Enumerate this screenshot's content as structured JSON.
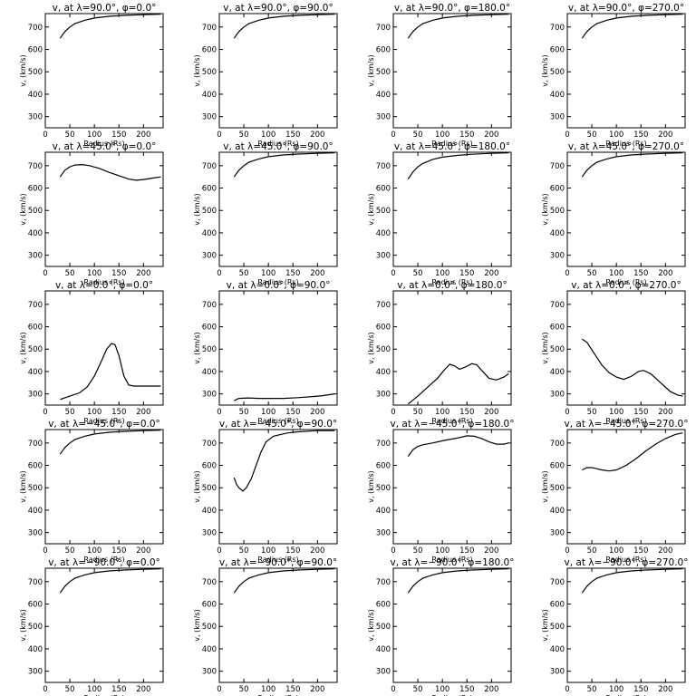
{
  "chart_data": [
    {
      "type": "line",
      "title": "v, at λ=90.0°, φ=0.0°",
      "xlabel": "Radius (Rs)",
      "ylabel": "v, (km/s)",
      "xlim": [
        0,
        240
      ],
      "ylim": [
        250,
        760
      ],
      "xticks": [
        0,
        50,
        100,
        150,
        200
      ],
      "yticks": [
        300,
        400,
        500,
        600,
        700
      ],
      "x": [
        30,
        40,
        50,
        60,
        80,
        100,
        130,
        160,
        200,
        235
      ],
      "y": [
        650,
        680,
        700,
        715,
        730,
        740,
        748,
        752,
        755,
        757
      ]
    },
    {
      "type": "line",
      "title": "v, at λ=90.0°, φ=90.0°",
      "xlabel": "Radius (Rs)",
      "ylabel": "v, (km/s)",
      "xlim": [
        0,
        240
      ],
      "ylim": [
        250,
        760
      ],
      "xticks": [
        0,
        50,
        100,
        150,
        200
      ],
      "yticks": [
        300,
        400,
        500,
        600,
        700
      ],
      "x": [
        30,
        40,
        50,
        60,
        80,
        100,
        130,
        160,
        200,
        235
      ],
      "y": [
        650,
        680,
        700,
        715,
        730,
        740,
        748,
        752,
        755,
        757
      ]
    },
    {
      "type": "line",
      "title": "v, at λ=90.0°, φ=180.0°",
      "xlabel": "Radius (Rs)",
      "ylabel": "v, (km/s)",
      "xlim": [
        0,
        240
      ],
      "ylim": [
        250,
        760
      ],
      "xticks": [
        0,
        50,
        100,
        150,
        200
      ],
      "yticks": [
        300,
        400,
        500,
        600,
        700
      ],
      "x": [
        30,
        40,
        50,
        60,
        80,
        100,
        130,
        160,
        200,
        235
      ],
      "y": [
        650,
        680,
        700,
        715,
        730,
        740,
        748,
        752,
        755,
        757
      ]
    },
    {
      "type": "line",
      "title": "v, at λ=90.0°, φ=270.0°",
      "xlabel": "Radius (Rs)",
      "ylabel": "v, (km/s)",
      "xlim": [
        0,
        240
      ],
      "ylim": [
        250,
        760
      ],
      "xticks": [
        0,
        50,
        100,
        150,
        200
      ],
      "yticks": [
        300,
        400,
        500,
        600,
        700
      ],
      "x": [
        30,
        40,
        50,
        60,
        80,
        100,
        130,
        160,
        200,
        235
      ],
      "y": [
        650,
        680,
        700,
        715,
        730,
        740,
        748,
        752,
        755,
        757
      ]
    },
    {
      "type": "line",
      "title": "v, at λ=45.0°, φ=0.0°",
      "xlabel": "Radius (Rs)",
      "ylabel": "v, (km/s)",
      "xlim": [
        0,
        240
      ],
      "ylim": [
        250,
        760
      ],
      "xticks": [
        0,
        50,
        100,
        150,
        200
      ],
      "yticks": [
        300,
        400,
        500,
        600,
        700
      ],
      "x": [
        30,
        40,
        50,
        60,
        75,
        90,
        110,
        130,
        150,
        170,
        185,
        200,
        220,
        235
      ],
      "y": [
        650,
        680,
        695,
        703,
        705,
        700,
        688,
        670,
        655,
        640,
        635,
        638,
        645,
        650
      ]
    },
    {
      "type": "line",
      "title": "v, at λ=45.0°, φ=90.0°",
      "xlabel": "Radius (Rs)",
      "ylabel": "v, (km/s)",
      "xlim": [
        0,
        240
      ],
      "ylim": [
        250,
        760
      ],
      "xticks": [
        0,
        50,
        100,
        150,
        200
      ],
      "yticks": [
        300,
        400,
        500,
        600,
        700
      ],
      "x": [
        30,
        40,
        50,
        60,
        80,
        100,
        130,
        160,
        200,
        235
      ],
      "y": [
        650,
        680,
        700,
        715,
        730,
        740,
        748,
        752,
        755,
        757
      ]
    },
    {
      "type": "line",
      "title": "v, at λ=45.0°, φ=180.0°",
      "xlabel": "Radius (Rs)",
      "ylabel": "v, (km/s)",
      "xlim": [
        0,
        240
      ],
      "ylim": [
        250,
        760
      ],
      "xticks": [
        0,
        50,
        100,
        150,
        200
      ],
      "yticks": [
        300,
        400,
        500,
        600,
        700
      ],
      "x": [
        30,
        40,
        50,
        60,
        80,
        100,
        130,
        160,
        200,
        235
      ],
      "y": [
        640,
        672,
        695,
        710,
        728,
        738,
        746,
        751,
        755,
        757
      ]
    },
    {
      "type": "line",
      "title": "v, at λ=45.0°, φ=270.0°",
      "xlabel": "Radius (Rs)",
      "ylabel": "v, (km/s)",
      "xlim": [
        0,
        240
      ],
      "ylim": [
        250,
        760
      ],
      "xticks": [
        0,
        50,
        100,
        150,
        200
      ],
      "yticks": [
        300,
        400,
        500,
        600,
        700
      ],
      "x": [
        30,
        40,
        50,
        60,
        80,
        100,
        130,
        160,
        200,
        235
      ],
      "y": [
        650,
        680,
        700,
        715,
        730,
        740,
        748,
        752,
        755,
        757
      ]
    },
    {
      "type": "line",
      "title": "v, at λ=0.0°, φ=0.0°",
      "xlabel": "Radius (Rs)",
      "ylabel": "v, (km/s)",
      "xlim": [
        0,
        240
      ],
      "ylim": [
        250,
        760
      ],
      "xticks": [
        0,
        50,
        100,
        150,
        200
      ],
      "yticks": [
        300,
        400,
        500,
        600,
        700
      ],
      "x": [
        30,
        50,
        70,
        85,
        100,
        115,
        125,
        135,
        142,
        150,
        160,
        170,
        180,
        200,
        235
      ],
      "y": [
        275,
        290,
        305,
        330,
        380,
        450,
        500,
        525,
        520,
        470,
        380,
        340,
        335,
        335,
        335
      ]
    },
    {
      "type": "line",
      "title": "v, at λ=0.0°, φ=90.0°",
      "xlabel": "Radius (Rs)",
      "ylabel": "v, (km/s)",
      "xlim": [
        0,
        240
      ],
      "ylim": [
        250,
        760
      ],
      "xticks": [
        0,
        50,
        100,
        150,
        200
      ],
      "yticks": [
        300,
        400,
        500,
        600,
        700
      ],
      "x": [
        30,
        40,
        60,
        80,
        100,
        130,
        160,
        190,
        210,
        235
      ],
      "y": [
        270,
        280,
        282,
        280,
        280,
        280,
        283,
        288,
        292,
        300
      ]
    },
    {
      "type": "line",
      "title": "v, at λ=0.0°, φ=180.0°",
      "xlabel": "Radius (Rs)",
      "ylabel": "v, (km/s)",
      "xlim": [
        0,
        240
      ],
      "ylim": [
        250,
        760
      ],
      "xticks": [
        0,
        50,
        100,
        150,
        200
      ],
      "yticks": [
        300,
        400,
        500,
        600,
        700
      ],
      "x": [
        30,
        50,
        70,
        90,
        105,
        115,
        125,
        135,
        145,
        160,
        170,
        180,
        195,
        210,
        225,
        235
      ],
      "y": [
        255,
        290,
        330,
        370,
        410,
        432,
        425,
        410,
        418,
        435,
        430,
        405,
        370,
        362,
        375,
        390
      ]
    },
    {
      "type": "line",
      "title": "v, at λ=0.0°, φ=270.0°",
      "xlabel": "Radius (Rs)",
      "ylabel": "v, (km/s)",
      "xlim": [
        0,
        240
      ],
      "ylim": [
        250,
        760
      ],
      "xticks": [
        0,
        50,
        100,
        150,
        200
      ],
      "yticks": [
        300,
        400,
        500,
        600,
        700
      ],
      "x": [
        30,
        40,
        55,
        70,
        85,
        100,
        115,
        130,
        145,
        155,
        170,
        190,
        210,
        225,
        235
      ],
      "y": [
        545,
        530,
        480,
        430,
        395,
        375,
        365,
        378,
        400,
        405,
        390,
        350,
        310,
        295,
        290
      ]
    },
    {
      "type": "line",
      "title": "v, at λ=−45.0°, φ=0.0°",
      "xlabel": "Radius (Rs)",
      "ylabel": "v, (km/s)",
      "xlim": [
        0,
        240
      ],
      "ylim": [
        250,
        760
      ],
      "xticks": [
        0,
        50,
        100,
        150,
        200
      ],
      "yticks": [
        300,
        400,
        500,
        600,
        700
      ],
      "x": [
        30,
        40,
        50,
        60,
        80,
        100,
        130,
        160,
        200,
        235
      ],
      "y": [
        650,
        680,
        700,
        715,
        730,
        740,
        748,
        752,
        755,
        757
      ]
    },
    {
      "type": "line",
      "title": "v, at λ=−45.0°, φ=90.0°",
      "xlabel": "Radius (Rs)",
      "ylabel": "v, (km/s)",
      "xlim": [
        0,
        240
      ],
      "ylim": [
        250,
        760
      ],
      "xticks": [
        0,
        50,
        100,
        150,
        200
      ],
      "yticks": [
        300,
        400,
        500,
        600,
        700
      ],
      "x": [
        30,
        35,
        40,
        48,
        55,
        65,
        75,
        85,
        95,
        110,
        125,
        140,
        160,
        200,
        235
      ],
      "y": [
        545,
        515,
        500,
        485,
        500,
        540,
        600,
        660,
        705,
        730,
        738,
        745,
        750,
        755,
        755
      ]
    },
    {
      "type": "line",
      "title": "v, at λ=−45.0°, φ=180.0°",
      "xlabel": "Radius (Rs)",
      "ylabel": "v, (km/s)",
      "xlim": [
        0,
        240
      ],
      "ylim": [
        250,
        760
      ],
      "xticks": [
        0,
        50,
        100,
        150,
        200
      ],
      "yticks": [
        300,
        400,
        500,
        600,
        700
      ],
      "x": [
        30,
        40,
        50,
        60,
        80,
        100,
        130,
        150,
        165,
        180,
        195,
        210,
        225,
        235
      ],
      "y": [
        640,
        670,
        685,
        692,
        700,
        710,
        722,
        732,
        730,
        720,
        705,
        695,
        695,
        700
      ]
    },
    {
      "type": "line",
      "title": "v, at λ=−45.0°, φ=270.0°",
      "xlabel": "Radius (Rs)",
      "ylabel": "v, (km/s)",
      "xlim": [
        0,
        240
      ],
      "ylim": [
        250,
        760
      ],
      "xticks": [
        0,
        50,
        100,
        150,
        200
      ],
      "yticks": [
        300,
        400,
        500,
        600,
        700
      ],
      "x": [
        30,
        40,
        50,
        60,
        70,
        85,
        100,
        120,
        140,
        160,
        180,
        200,
        220,
        235
      ],
      "y": [
        580,
        590,
        590,
        585,
        580,
        575,
        580,
        600,
        630,
        665,
        695,
        720,
        738,
        745
      ]
    },
    {
      "type": "line",
      "title": "v, at λ=−90.0°, φ=0.0°",
      "xlabel": "Radius (Rs)",
      "ylabel": "v, (km/s)",
      "xlim": [
        0,
        240
      ],
      "ylim": [
        250,
        760
      ],
      "xticks": [
        0,
        50,
        100,
        150,
        200
      ],
      "yticks": [
        300,
        400,
        500,
        600,
        700
      ],
      "x": [
        30,
        40,
        50,
        60,
        80,
        100,
        130,
        160,
        200,
        235
      ],
      "y": [
        650,
        680,
        700,
        715,
        730,
        740,
        748,
        752,
        755,
        757
      ]
    },
    {
      "type": "line",
      "title": "v, at λ=−90.0°, φ=90.0°",
      "xlabel": "Radius (Rs)",
      "ylabel": "v, (km/s)",
      "xlim": [
        0,
        240
      ],
      "ylim": [
        250,
        760
      ],
      "xticks": [
        0,
        50,
        100,
        150,
        200
      ],
      "yticks": [
        300,
        400,
        500,
        600,
        700
      ],
      "x": [
        30,
        40,
        50,
        60,
        80,
        100,
        130,
        160,
        200,
        235
      ],
      "y": [
        650,
        680,
        700,
        715,
        730,
        740,
        748,
        752,
        755,
        757
      ]
    },
    {
      "type": "line",
      "title": "v, at λ=−90.0°, φ=180.0°",
      "xlabel": "Radius (Rs)",
      "ylabel": "v, (km/s)",
      "xlim": [
        0,
        240
      ],
      "ylim": [
        250,
        760
      ],
      "xticks": [
        0,
        50,
        100,
        150,
        200
      ],
      "yticks": [
        300,
        400,
        500,
        600,
        700
      ],
      "x": [
        30,
        40,
        50,
        60,
        80,
        100,
        130,
        160,
        200,
        235
      ],
      "y": [
        650,
        680,
        700,
        715,
        730,
        740,
        748,
        752,
        755,
        757
      ]
    },
    {
      "type": "line",
      "title": "v, at λ=−90.0°, φ=270.0°",
      "xlabel": "Radius (Rs)",
      "ylabel": "v, (km/s)",
      "xlim": [
        0,
        240
      ],
      "ylim": [
        250,
        760
      ],
      "xticks": [
        0,
        50,
        100,
        150,
        200
      ],
      "yticks": [
        300,
        400,
        500,
        600,
        700
      ],
      "x": [
        30,
        40,
        50,
        60,
        80,
        100,
        130,
        160,
        200,
        235
      ],
      "y": [
        650,
        680,
        700,
        715,
        730,
        740,
        748,
        752,
        755,
        757
      ]
    }
  ]
}
